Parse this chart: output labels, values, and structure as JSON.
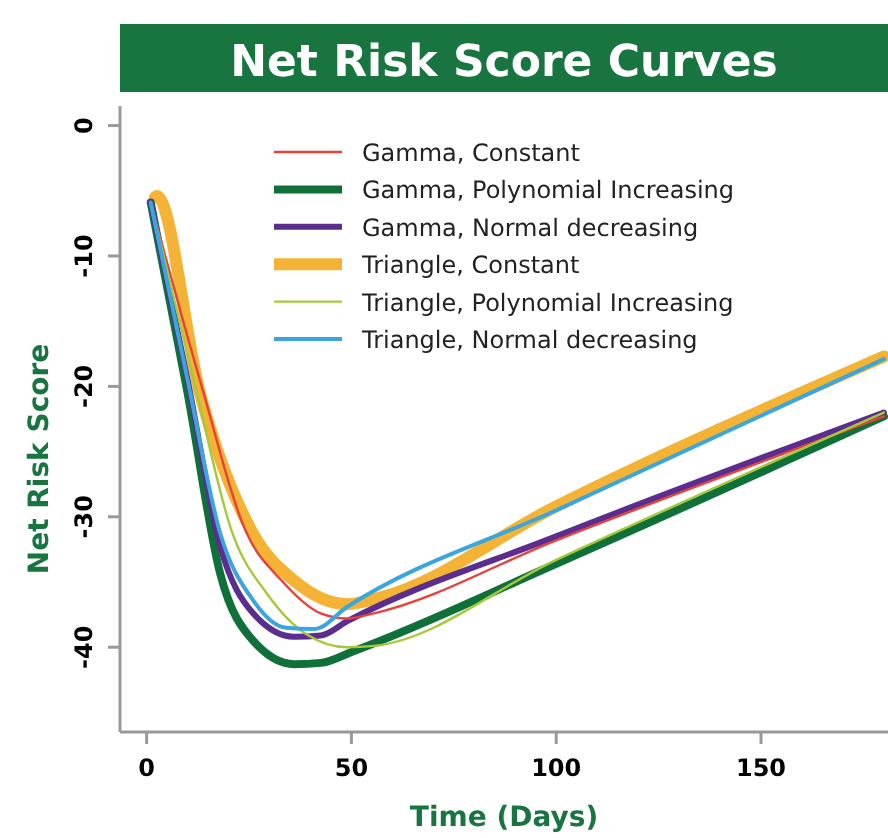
{
  "chart_data": {
    "type": "line",
    "title": "Net Risk Score Curves",
    "xlabel": "Time (Days)",
    "ylabel": "Net Risk Score",
    "xlim": [
      -6.5,
      181
    ],
    "xticks": [
      0,
      50,
      100,
      150
    ],
    "ylim": [
      -46.5,
      1.5
    ],
    "yticks": [
      0,
      -10,
      -20,
      -30,
      -40
    ],
    "grid": false,
    "legend": "top right",
    "marker": "none",
    "line_style": "solid",
    "series": [
      {
        "name": "Gamma, Constant",
        "color": "#e8413a",
        "x": [
          1,
          13,
          24.5,
          33,
          42.5,
          49,
          55.5,
          100,
          180
        ],
        "values": [
          -5.9,
          -19.5,
          -31.3,
          -34.9,
          -37.4,
          -37.8,
          -37.4,
          -31.8,
          -22.3
        ]
      },
      {
        "name": "Gamma, Polynomial Increasing",
        "color": "#10703a",
        "x": [
          1,
          10,
          18,
          26,
          36,
          42.5,
          50.5,
          100,
          180
        ],
        "values": [
          -5.9,
          -20.5,
          -34.4,
          -39.5,
          -41.3,
          -41.2,
          -40.3,
          -33.6,
          -22.3
        ]
      },
      {
        "name": "Gamma, Normal decreasing",
        "color": "#5b2d8e",
        "x": [
          1,
          10,
          18,
          26,
          36,
          42.5,
          49,
          100,
          180
        ],
        "values": [
          -5.9,
          -19.5,
          -32.3,
          -37.4,
          -39.2,
          -39.1,
          -38,
          -31.5,
          -22
        ]
      },
      {
        "name": "Triangle, Constant",
        "color": "#f5b335",
        "x": [
          2,
          2.5,
          13,
          26,
          36,
          49,
          57,
          100,
          180
        ],
        "values": [
          -5.5,
          -5.4,
          -20.5,
          -31.3,
          -34.9,
          -36.7,
          -36.2,
          -29.2,
          -17.7
        ]
      },
      {
        "name": "Triangle, Polynomial Increasing",
        "color": "#a6c93a",
        "x": [
          1,
          11.5,
          21,
          29.4,
          39,
          49,
          55.5,
          100,
          180
        ],
        "values": [
          -5.9,
          -19.5,
          -31.3,
          -35.9,
          -39,
          -40,
          -39.9,
          -33.3,
          -22
        ]
      },
      {
        "name": "Triangle, Normal decreasing",
        "color": "#3aa6dd",
        "x": [
          1,
          10,
          18,
          26,
          34,
          41,
          49,
          100,
          180
        ],
        "values": [
          -5.9,
          -19.5,
          -31.3,
          -36.4,
          -38.5,
          -38.6,
          -36.9,
          -29.5,
          -17.9
        ]
      }
    ]
  }
}
